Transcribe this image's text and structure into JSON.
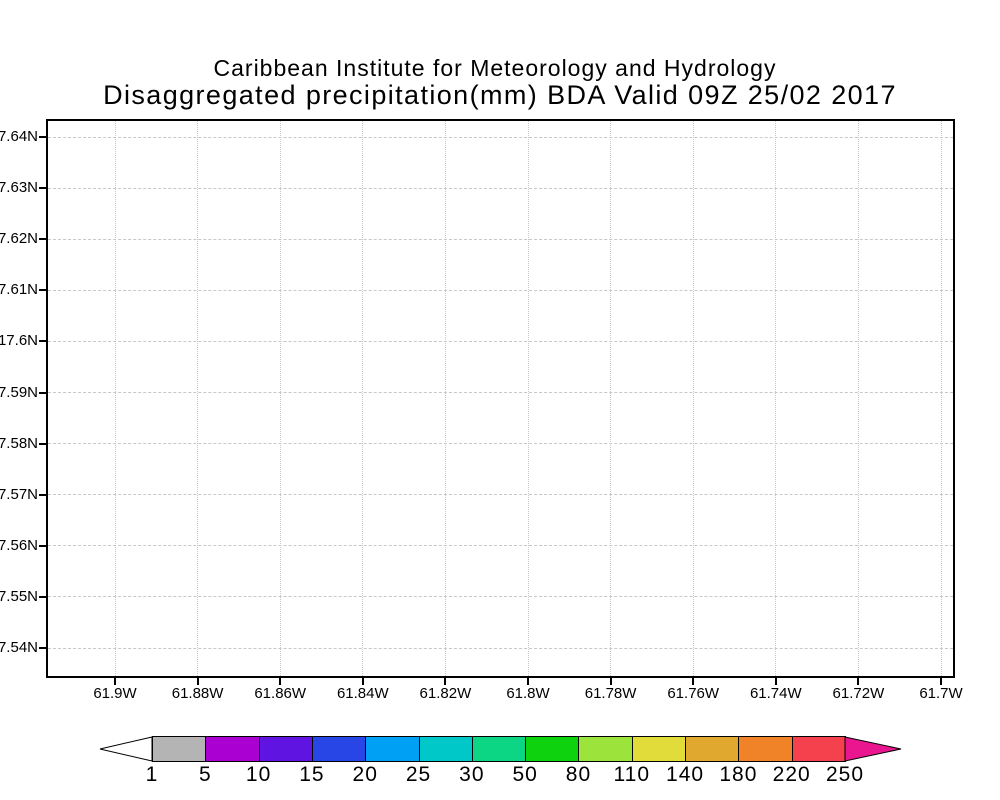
{
  "chart_data": {
    "type": "heatmap",
    "suptitle": "Caribbean Institute for Meteorology and Hydrology",
    "title": "Disaggregated precipitation(mm) BDA Valid 09Z 25/02 2017",
    "x_axis": {
      "tick_labels": [
        "61.9W",
        "61.88W",
        "61.86W",
        "61.84W",
        "61.82W",
        "61.8W",
        "61.78W",
        "61.76W",
        "61.74W",
        "61.72W",
        "61.7W"
      ]
    },
    "y_axis": {
      "tick_labels": [
        "7.64N",
        "7.63N",
        "7.62N",
        "7.61N",
        "17.6N",
        "7.59N",
        "7.58N",
        "7.57N",
        "7.56N",
        "7.55N",
        "7.54N"
      ]
    },
    "values": [],
    "grid": true,
    "legend_position": "bottom",
    "colorbar": {
      "tick_labels": [
        "1",
        "5",
        "10",
        "15",
        "20",
        "25",
        "30",
        "50",
        "80",
        "110",
        "140",
        "180",
        "220",
        "250"
      ],
      "segment_colors": [
        "#b4b4b4",
        "#aa00d2",
        "#5f14e1",
        "#2846e6",
        "#00a0f5",
        "#00c8c8",
        "#0cd584",
        "#0fd20f",
        "#9ce33c",
        "#e2dc3a",
        "#e0a82e",
        "#f08228",
        "#f5404e"
      ],
      "left_arrow_color": "#ffffff",
      "right_arrow_color": "#ea1690"
    }
  }
}
